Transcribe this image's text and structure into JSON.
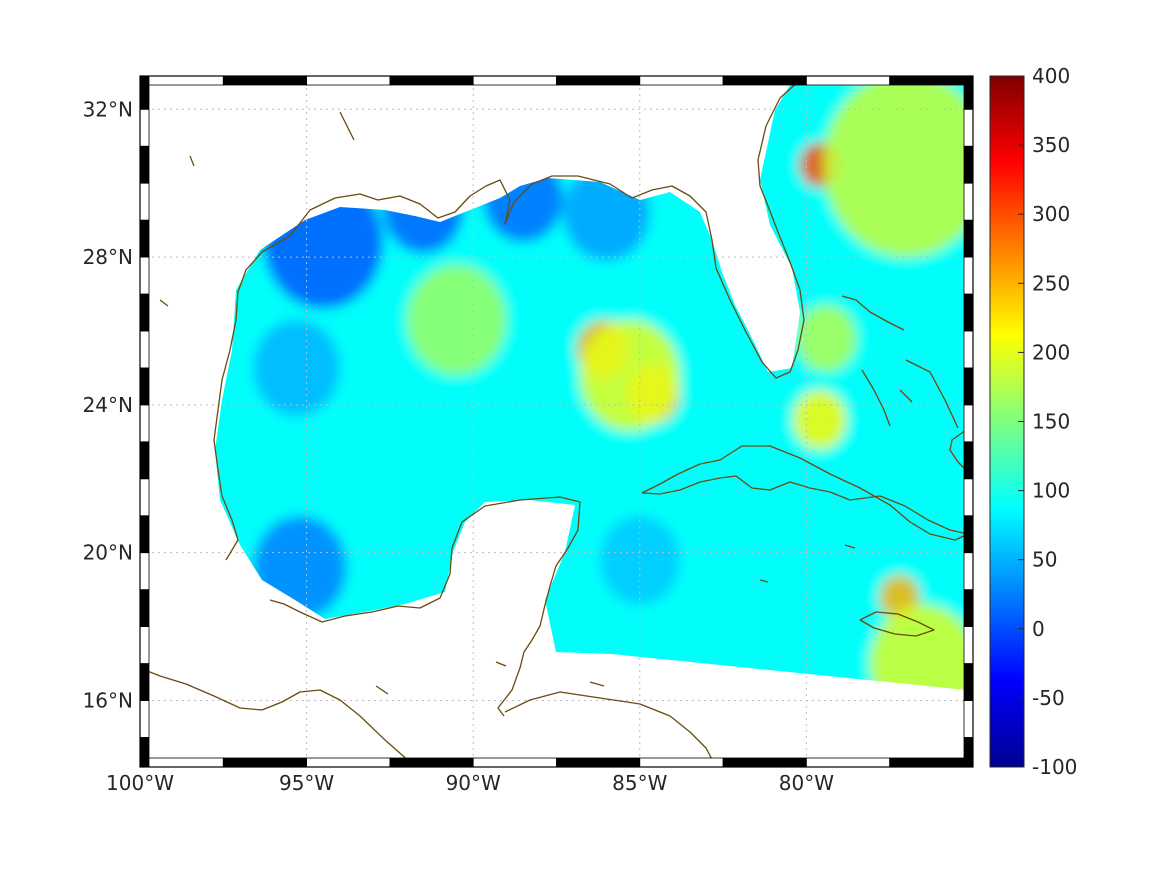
{
  "map": {
    "lon_range": [
      -100,
      -75
    ],
    "lat_range": [
      14.2,
      32.9
    ],
    "grid": true,
    "frame": "black-white-alternating",
    "lon_ticks": [
      {
        "value": -100,
        "label": "100°W"
      },
      {
        "value": -95,
        "label": "95°W"
      },
      {
        "value": -90,
        "label": "90°W"
      },
      {
        "value": -85,
        "label": "85°W"
      },
      {
        "value": -80,
        "label": "80°W"
      }
    ],
    "lat_ticks": [
      {
        "value": 32,
        "label": "32°N"
      },
      {
        "value": 28,
        "label": "28°N"
      },
      {
        "value": 24,
        "label": "24°N"
      },
      {
        "value": 20,
        "label": "20°N"
      },
      {
        "value": 16,
        "label": "16°N"
      }
    ],
    "coastline_color": "#6b4a10",
    "land_color": "#ffffff",
    "colormap": "jet",
    "field": {
      "background_value": 90,
      "features": [
        {
          "name": "northern-shelf-low",
          "lon": -94.5,
          "lat": 28.4,
          "value": 5,
          "radius_deg": 1.8
        },
        {
          "name": "east-texas-low",
          "lon": -91.5,
          "lat": 29.3,
          "value": 10,
          "radius_deg": 1.2
        },
        {
          "name": "mississippi-bight-low",
          "lon": -88.5,
          "lat": 29.6,
          "value": 15,
          "radius_deg": 1.2
        },
        {
          "name": "campeche-low",
          "lon": -95.2,
          "lat": 19.6,
          "value": 25,
          "radius_deg": 1.4
        },
        {
          "name": "western-gulf-low",
          "lon": -95.3,
          "lat": 25.0,
          "value": 50,
          "radius_deg": 1.3
        },
        {
          "name": "central-gulf-high",
          "lon": -90.5,
          "lat": 26.3,
          "value": 165,
          "radius_deg": 1.5
        },
        {
          "name": "loop-current-ridge-north",
          "lon": -86.1,
          "lat": 25.5,
          "value": 250,
          "radius_deg": 0.8
        },
        {
          "name": "loop-current-ridge-south",
          "lon": -84.6,
          "lat": 24.3,
          "value": 240,
          "radius_deg": 0.8
        },
        {
          "name": "loop-current-shoulder",
          "lon": -85.3,
          "lat": 24.8,
          "value": 200,
          "radius_deg": 1.5
        },
        {
          "name": "georgia-eddy",
          "lon": -79.6,
          "lat": 30.5,
          "value": 300,
          "radius_deg": 0.6
        },
        {
          "name": "atlantic-northeast",
          "lon": -77.0,
          "lat": 30.5,
          "value": 185,
          "radius_deg": 2.5
        },
        {
          "name": "florida-current",
          "lon": -79.4,
          "lat": 25.8,
          "value": 175,
          "radius_deg": 0.9
        },
        {
          "name": "florida-straits",
          "lon": -79.6,
          "lat": 23.6,
          "value": 215,
          "radius_deg": 0.8
        },
        {
          "name": "jamaica-high",
          "lon": -77.2,
          "lat": 18.8,
          "value": 250,
          "radius_deg": 0.6
        },
        {
          "name": "south-caribbean-high",
          "lon": -76.5,
          "lat": 17.0,
          "value": 195,
          "radius_deg": 1.6
        },
        {
          "name": "cayman-low",
          "lon": -85.0,
          "lat": 19.8,
          "value": 60,
          "radius_deg": 1.2
        },
        {
          "name": "north-florida-shelf-low",
          "lon": -86.0,
          "lat": 29.2,
          "value": 40,
          "radius_deg": 1.3
        }
      ]
    }
  },
  "colorbar": {
    "min": -100,
    "max": 400,
    "ticks": [
      {
        "value": 400,
        "label": "400"
      },
      {
        "value": 350,
        "label": "350"
      },
      {
        "value": 300,
        "label": "300"
      },
      {
        "value": 250,
        "label": "250"
      },
      {
        "value": 200,
        "label": "200"
      },
      {
        "value": 150,
        "label": "150"
      },
      {
        "value": 100,
        "label": "100"
      },
      {
        "value": 50,
        "label": "50"
      },
      {
        "value": 0,
        "label": "0"
      },
      {
        "value": -50,
        "label": "-50"
      },
      {
        "value": -100,
        "label": "-100"
      }
    ]
  }
}
